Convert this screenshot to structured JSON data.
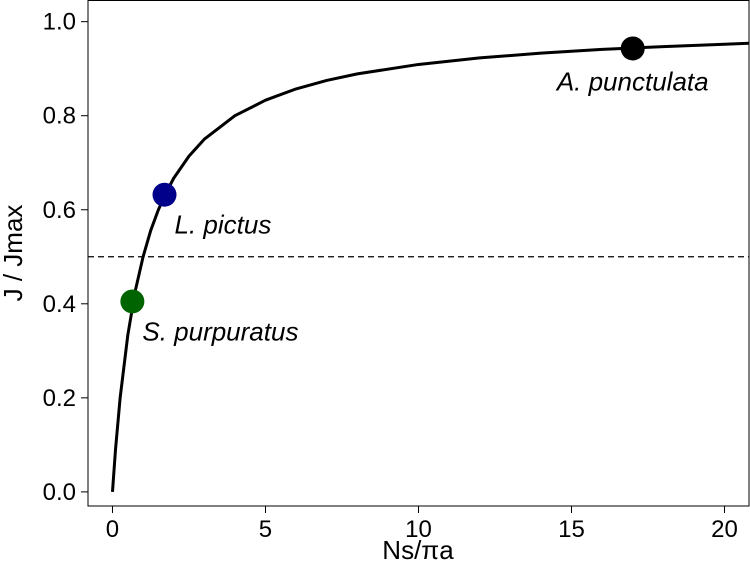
{
  "chart_data": {
    "type": "line",
    "xlabel": "Ns/πa",
    "ylabel": "J / Jmax",
    "xlim": [
      -0.8,
      20.8
    ],
    "ylim": [
      -0.03,
      1.045
    ],
    "x_ticks": [
      0,
      5,
      10,
      15,
      20
    ],
    "y_ticks": [
      0.0,
      0.2,
      0.4,
      0.6,
      0.8,
      1.0
    ],
    "x_tick_labels": [
      "0",
      "5",
      "10",
      "15",
      "20"
    ],
    "y_tick_labels": [
      "0.0",
      "0.2",
      "0.4",
      "0.6",
      "0.8",
      "1.0"
    ],
    "grid": false,
    "series": [
      {
        "style": "solid",
        "color": "#000000",
        "x": [
          0,
          0.1,
          0.25,
          0.5,
          0.75,
          1,
          1.25,
          1.5,
          1.75,
          2,
          2.5,
          3,
          4,
          5,
          6,
          7,
          8,
          10,
          12,
          14,
          16,
          18,
          20,
          20.8
        ],
        "y": [
          0,
          0.091,
          0.2,
          0.333,
          0.429,
          0.5,
          0.556,
          0.6,
          0.636,
          0.667,
          0.714,
          0.75,
          0.8,
          0.833,
          0.857,
          0.875,
          0.889,
          0.909,
          0.923,
          0.933,
          0.941,
          0.947,
          0.952,
          0.954
        ]
      }
    ],
    "reference_lines": [
      {
        "orientation": "horizontal",
        "y": 0.5,
        "style": "dashed",
        "color": "#000000"
      }
    ],
    "points": [
      {
        "label": "S. purpuratus",
        "x": 0.65,
        "y": 0.405,
        "color": "#006400",
        "label_position": "below-right"
      },
      {
        "label": "L. pictus",
        "x": 1.7,
        "y": 0.632,
        "color": "#00008B",
        "label_position": "below-right"
      },
      {
        "label": "A. punctulata",
        "x": 17.0,
        "y": 0.943,
        "color": "#000000",
        "label_position": "below"
      }
    ]
  }
}
